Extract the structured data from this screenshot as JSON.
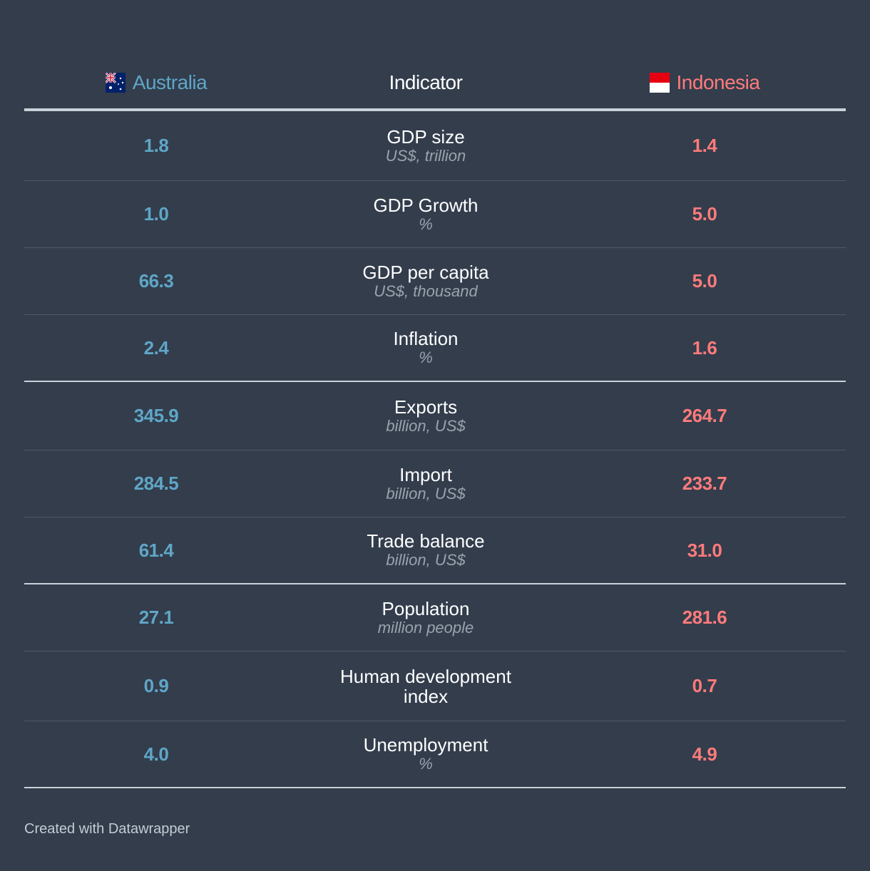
{
  "chart_data": {
    "type": "table",
    "columns": [
      "Australia",
      "Indicator",
      "Indonesia"
    ],
    "rows": [
      {
        "indicator": "GDP size",
        "unit": "US$, trillion",
        "australia": "1.8",
        "indonesia": "1.4"
      },
      {
        "indicator": "GDP Growth",
        "unit": "%",
        "australia": "1.0",
        "indonesia": "5.0"
      },
      {
        "indicator": "GDP per capita",
        "unit": "US$, thousand",
        "australia": "66.3",
        "indonesia": "5.0"
      },
      {
        "indicator": "Inflation",
        "unit": "%",
        "australia": "2.4",
        "indonesia": "1.6"
      },
      {
        "indicator": "Exports",
        "unit": "billion, US$",
        "australia": "345.9",
        "indonesia": "264.7"
      },
      {
        "indicator": "Import",
        "unit": "billion, US$",
        "australia": "284.5",
        "indonesia": "233.7"
      },
      {
        "indicator": "Trade balance",
        "unit": "billion, US$",
        "australia": "61.4",
        "indonesia": "31.0"
      },
      {
        "indicator": "Population",
        "unit": "million people",
        "australia": "27.1",
        "indonesia": "281.6"
      },
      {
        "indicator": "Human development index",
        "unit": "",
        "australia": "0.9",
        "indonesia": "0.7"
      },
      {
        "indicator": "Unemployment",
        "unit": "%",
        "australia": "4.0",
        "indonesia": "4.9"
      }
    ]
  },
  "header": {
    "australia": "Australia",
    "indicator": "Indicator",
    "indonesia": "Indonesia"
  },
  "colors": {
    "background": "#333d4c",
    "australia": "#5fa6c7",
    "indonesia": "#ff7b7b"
  },
  "footer": "Created with Datawrapper"
}
